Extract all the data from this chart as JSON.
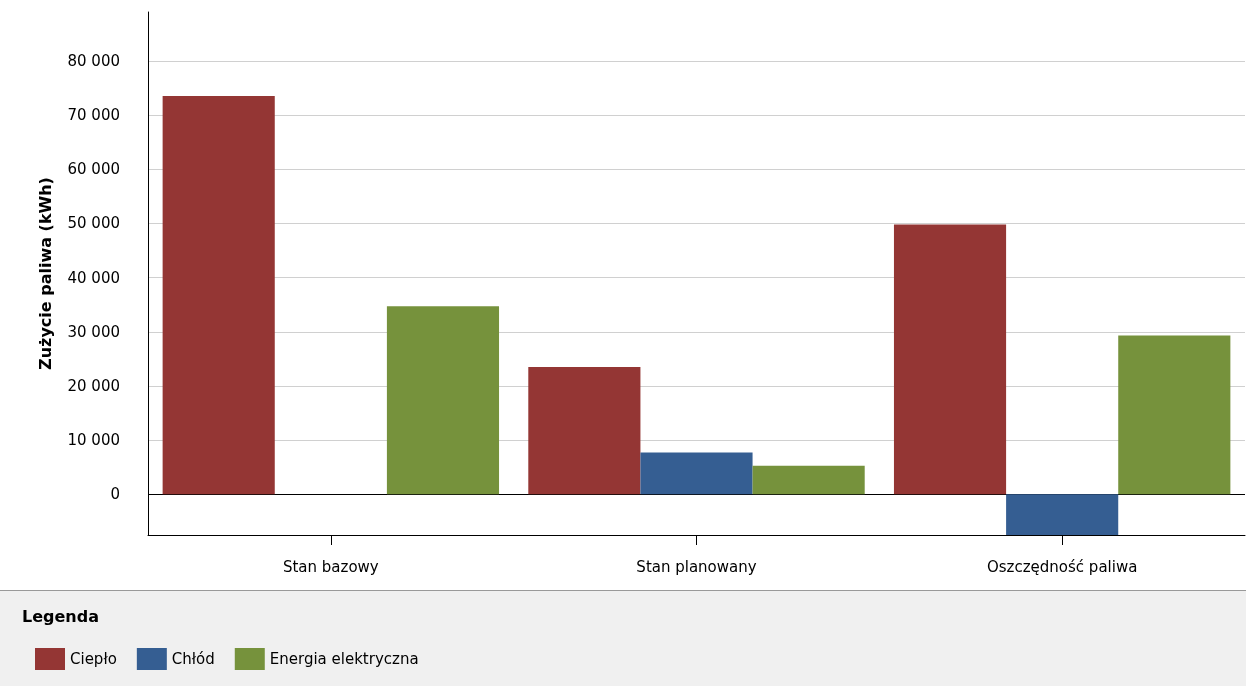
{
  "chart_data": {
    "type": "bar",
    "ylabel": "Zużycie paliwa (kWh)",
    "legend_title": "Legenda",
    "categories": [
      "Stan bazowy",
      "Stan planowany",
      "Oszczędność paliwa"
    ],
    "series": [
      {
        "name": "Ciepło",
        "color": "#943634",
        "values": [
          73500,
          23500,
          49800
        ]
      },
      {
        "name": "Chłód",
        "color": "#355e92",
        "values": [
          0,
          7700,
          -7500
        ]
      },
      {
        "name": "Energia elektryczna",
        "color": "#76923c",
        "values": [
          34700,
          5300,
          29300
        ]
      }
    ],
    "ylim": [
      -7500,
      89000
    ],
    "yticks": [
      {
        "value": 0,
        "label": "0"
      },
      {
        "value": 10000,
        "label": "10 000"
      },
      {
        "value": 20000,
        "label": "20 000"
      },
      {
        "value": 30000,
        "label": "30 000"
      },
      {
        "value": 40000,
        "label": "40 000"
      },
      {
        "value": 50000,
        "label": "50 000"
      },
      {
        "value": 60000,
        "label": "60 000"
      },
      {
        "value": 70000,
        "label": "70 000"
      },
      {
        "value": 80000,
        "label": "80 000"
      }
    ],
    "grid": "y",
    "legend": "bottom left"
  }
}
